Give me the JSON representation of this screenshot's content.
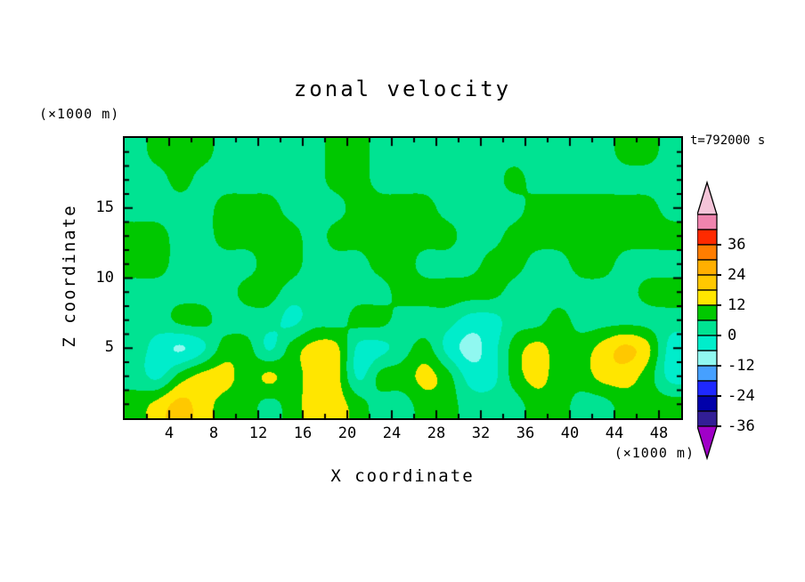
{
  "labels": {
    "title": "zonal velocity",
    "y_unit_top": "(×1000 m)",
    "x_unit_bottom": "(×1000 m)",
    "time_annotation": "t=792000 s",
    "x_axis": "X coordinate",
    "y_axis": "Z coordinate"
  },
  "chart_data": {
    "type": "heatmap",
    "subtype": "filled-contour",
    "title": "zonal velocity",
    "xlabel": "X coordinate",
    "ylabel": "Z coordinate",
    "x_unit": "(×1000 m)",
    "y_unit": "(×1000 m)",
    "time_annotation": "t=792000 s",
    "xlim": [
      0,
      50
    ],
    "ylim": [
      0,
      20
    ],
    "x_ticks": [
      4,
      8,
      12,
      16,
      20,
      24,
      28,
      32,
      36,
      40,
      44,
      48
    ],
    "y_ticks": [
      5,
      10,
      15
    ],
    "x_minor_step": 2,
    "y_minor_step": 1,
    "x_centers": [
      1,
      3,
      5,
      7,
      9,
      11,
      13,
      15,
      17,
      19,
      21,
      23,
      25,
      27,
      29,
      31,
      33,
      35,
      37,
      39,
      41,
      43,
      45,
      47,
      49
    ],
    "z_centers_top_to_bottom": [
      19,
      17,
      15,
      13,
      11,
      9,
      7,
      5,
      3,
      1
    ],
    "values": [
      [
        -3,
        3,
        3,
        3,
        -3,
        -3,
        -3,
        -3,
        -3,
        3,
        3,
        -3,
        -3,
        -3,
        -3,
        -3,
        -3,
        -3,
        -3,
        -3,
        -3,
        -3,
        3,
        3,
        -3
      ],
      [
        -3,
        -3,
        3,
        -3,
        -3,
        -3,
        -3,
        -3,
        -3,
        3,
        3,
        -3,
        -3,
        -3,
        -3,
        -3,
        -3,
        3,
        -3,
        -3,
        -3,
        -3,
        -3,
        -3,
        -3
      ],
      [
        -3,
        -3,
        -3,
        -3,
        3,
        3,
        3,
        -3,
        -3,
        -3,
        3,
        3,
        3,
        3,
        -3,
        -3,
        -3,
        -3,
        3,
        3,
        3,
        3,
        3,
        3,
        -3
      ],
      [
        3,
        3,
        -3,
        -3,
        3,
        3,
        3,
        3,
        -3,
        3,
        3,
        3,
        3,
        3,
        3,
        -3,
        -3,
        3,
        3,
        3,
        3,
        3,
        3,
        3,
        3
      ],
      [
        3,
        3,
        -3,
        -3,
        -3,
        -3,
        3,
        3,
        -3,
        -3,
        -3,
        3,
        3,
        -3,
        -3,
        -3,
        3,
        3,
        -3,
        -3,
        3,
        3,
        -3,
        -3,
        -3
      ],
      [
        -3,
        -3,
        -3,
        -3,
        -3,
        3,
        3,
        -3,
        -3,
        -3,
        -3,
        -3,
        3,
        3,
        3,
        3,
        3,
        -3,
        -3,
        -3,
        -3,
        -3,
        -3,
        3,
        3
      ],
      [
        -3,
        -3,
        3,
        3,
        -3,
        -3,
        -3,
        -9,
        -3,
        -3,
        3,
        3,
        -3,
        -3,
        -3,
        -9,
        -9,
        -3,
        -3,
        3,
        -3,
        -3,
        -3,
        -3,
        -3
      ],
      [
        -3,
        -9,
        -15,
        -9,
        3,
        3,
        -9,
        3,
        9,
        9,
        -9,
        -9,
        -3,
        3,
        -9,
        -15,
        -9,
        3,
        9,
        3,
        3,
        9,
        15,
        9,
        -9
      ],
      [
        -3,
        -9,
        3,
        9,
        9,
        3,
        9,
        3,
        9,
        9,
        -9,
        3,
        3,
        9,
        3,
        -9,
        -9,
        3,
        9,
        3,
        3,
        9,
        9,
        3,
        -9
      ],
      [
        3,
        9,
        15,
        9,
        3,
        3,
        -3,
        3,
        9,
        9,
        3,
        -3,
        -3,
        3,
        3,
        -3,
        -3,
        -3,
        3,
        3,
        -3,
        -3,
        3,
        3,
        3
      ]
    ],
    "value_units": "m/s",
    "contour_boundaries": [
      -12,
      -6,
      0,
      6,
      12
    ],
    "field_colors": [
      "#90F8F0",
      "#00EDCB",
      "#00E392",
      "#00C800",
      "#FFE600",
      "#FFC800"
    ],
    "colorbar": {
      "labels": [
        "36",
        "24",
        "12",
        "0",
        "-12",
        "-24",
        "-36"
      ],
      "level_step": 6,
      "levels_top_to_bottom": [
        42,
        36,
        30,
        24,
        18,
        12,
        6,
        0,
        -6,
        -12,
        -18,
        -24,
        -30,
        -36,
        -42
      ],
      "box_colors_top_to_bottom": [
        "#EF84AE",
        "#FF2A00",
        "#FF7D00",
        "#FFAF00",
        "#FFC800",
        "#FFE600",
        "#00C800",
        "#00E392",
        "#00EDCB",
        "#90F8F0",
        "#46A0FF",
        "#1E28FF",
        "#0000AA",
        "#321E96"
      ],
      "arrow_top_color": "#F4C4D8",
      "arrow_bottom_color": "#A000C8"
    }
  }
}
